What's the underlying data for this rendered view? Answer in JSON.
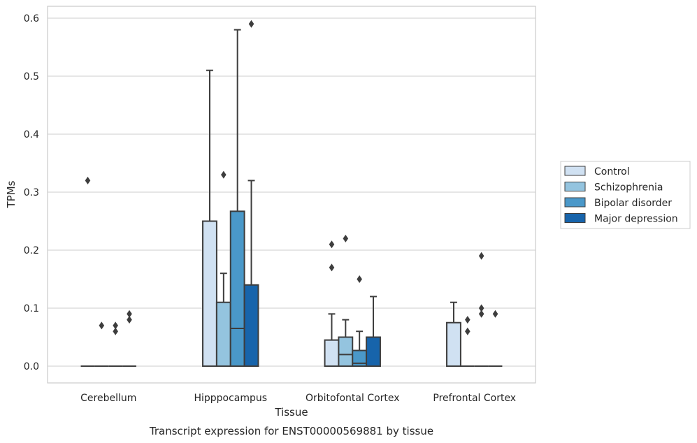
{
  "chart_data": {
    "type": "box",
    "xlabel": "Tissue",
    "ylabel": "TPMs",
    "caption": "Transcript expression for ENST00000569881 by tissue",
    "ylim": [
      -0.03,
      0.62
    ],
    "yticks": [
      0.0,
      0.1,
      0.2,
      0.3,
      0.4,
      0.5,
      0.6
    ],
    "ytick_labels": [
      "0.0",
      "0.1",
      "0.2",
      "0.3",
      "0.4",
      "0.5",
      "0.6"
    ],
    "grid": true,
    "legend_position": "right",
    "categories": [
      "Cerebellum",
      "Hipppocampus",
      "Orbitofontal Cortex",
      "Prefrontal Cortex"
    ],
    "series": [
      {
        "name": "Control",
        "color": "#d0e1f2",
        "boxes": [
          {
            "q1": 0,
            "median": 0,
            "q3": 0,
            "whisker_low": 0,
            "whisker_high": 0,
            "outliers": [
              0.32
            ]
          },
          {
            "q1": 0,
            "median": 0,
            "q3": 0.25,
            "whisker_low": 0,
            "whisker_high": 0.51,
            "outliers": []
          },
          {
            "q1": 0,
            "median": 0,
            "q3": 0.045,
            "whisker_low": 0,
            "whisker_high": 0.09,
            "outliers": [
              0.17,
              0.21
            ]
          },
          {
            "q1": 0,
            "median": 0,
            "q3": 0.075,
            "whisker_low": 0,
            "whisker_high": 0.11,
            "outliers": []
          }
        ]
      },
      {
        "name": "Schizophrenia",
        "color": "#94c4df",
        "boxes": [
          {
            "q1": 0,
            "median": 0,
            "q3": 0,
            "whisker_low": 0,
            "whisker_high": 0,
            "outliers": [
              0.07
            ]
          },
          {
            "q1": 0,
            "median": 0,
            "q3": 0.11,
            "whisker_low": 0,
            "whisker_high": 0.16,
            "outliers": [
              0.33
            ]
          },
          {
            "q1": 0,
            "median": 0.02,
            "q3": 0.05,
            "whisker_low": 0,
            "whisker_high": 0.08,
            "outliers": [
              0.22
            ]
          },
          {
            "q1": 0,
            "median": 0,
            "q3": 0,
            "whisker_low": 0,
            "whisker_high": 0,
            "outliers": [
              0.06,
              0.08
            ]
          }
        ]
      },
      {
        "name": "Bipolar disorder",
        "color": "#4a98c9",
        "boxes": [
          {
            "q1": 0,
            "median": 0,
            "q3": 0,
            "whisker_low": 0,
            "whisker_high": 0,
            "outliers": [
              0.06,
              0.07
            ]
          },
          {
            "q1": 0,
            "median": 0.065,
            "q3": 0.267,
            "whisker_low": 0,
            "whisker_high": 0.58,
            "outliers": []
          },
          {
            "q1": 0,
            "median": 0.005,
            "q3": 0.027,
            "whisker_low": 0,
            "whisker_high": 0.06,
            "outliers": [
              0.15
            ]
          },
          {
            "q1": 0,
            "median": 0,
            "q3": 0,
            "whisker_low": 0,
            "whisker_high": 0,
            "outliers": [
              0.09,
              0.1,
              0.19
            ]
          }
        ]
      },
      {
        "name": "Major depression",
        "color": "#1764ab",
        "boxes": [
          {
            "q1": 0,
            "median": 0,
            "q3": 0,
            "whisker_low": 0,
            "whisker_high": 0,
            "outliers": [
              0.08,
              0.09
            ]
          },
          {
            "q1": 0,
            "median": 0,
            "q3": 0.14,
            "whisker_low": 0,
            "whisker_high": 0.32,
            "outliers": [
              0.59
            ]
          },
          {
            "q1": 0,
            "median": 0,
            "q3": 0.05,
            "whisker_low": 0,
            "whisker_high": 0.12,
            "outliers": []
          },
          {
            "q1": 0,
            "median": 0,
            "q3": 0,
            "whisker_low": 0,
            "whisker_high": 0,
            "outliers": [
              0.09
            ]
          }
        ]
      }
    ]
  }
}
